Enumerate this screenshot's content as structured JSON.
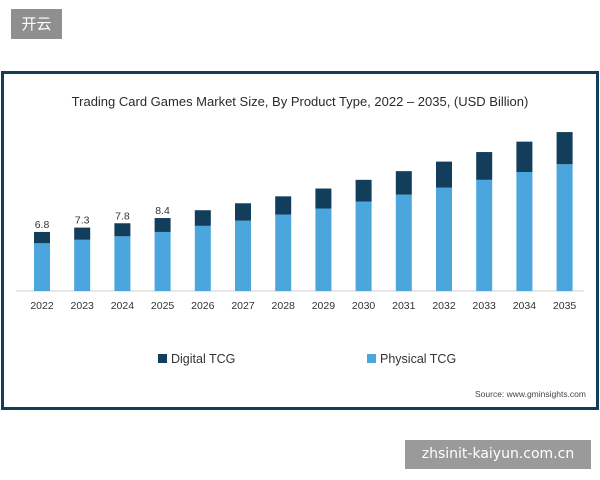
{
  "corner_badge": "开云",
  "watermark": "zhsinit-kaiyun.com.cn",
  "source": "Source: www.gminsights.com",
  "colors": {
    "digital": "#123d5b",
    "physical": "#4aa6dd",
    "frame": "#123d5b"
  },
  "chart_data": {
    "type": "bar",
    "stacked": true,
    "title": "Trading Card Games Market Size, By Product Type, 2022 – 2035, (USD Billion)",
    "categories": [
      "2022",
      "2023",
      "2024",
      "2025",
      "2026",
      "2027",
      "2028",
      "2029",
      "2030",
      "2031",
      "2032",
      "2033",
      "2034",
      "2035"
    ],
    "series": [
      {
        "name": "Physical TCG",
        "values": [
          5.5,
          5.9,
          6.3,
          6.8,
          7.5,
          8.1,
          8.8,
          9.5,
          10.3,
          11.1,
          11.9,
          12.8,
          13.7,
          14.6
        ]
      },
      {
        "name": "Digital TCG",
        "values": [
          1.3,
          1.4,
          1.5,
          1.6,
          1.8,
          2.0,
          2.1,
          2.3,
          2.5,
          2.7,
          3.0,
          3.2,
          3.5,
          3.7
        ]
      }
    ],
    "data_labels": [
      "6.8",
      "7.3",
      "7.8",
      "8.4",
      "",
      "",
      "",
      "",
      "",
      "",
      "",
      "",
      "",
      ""
    ],
    "ylim": [
      0,
      19
    ],
    "grid": false,
    "legend_position": "bottom"
  }
}
